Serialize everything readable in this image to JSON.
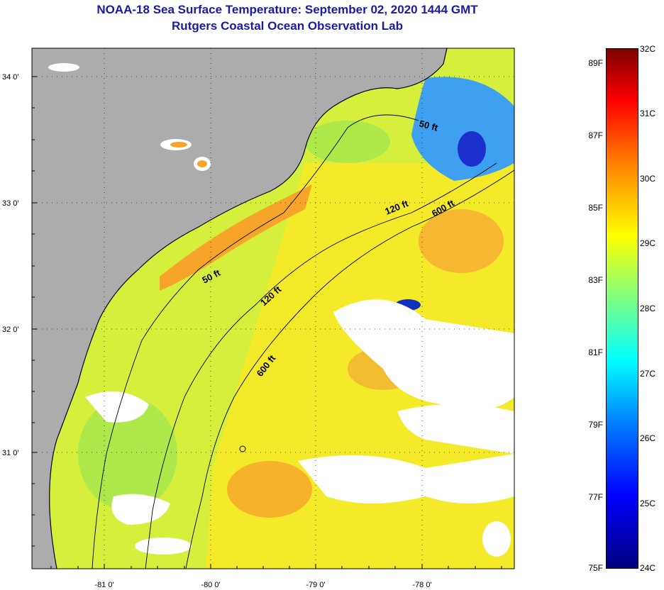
{
  "title": {
    "line1": "NOAA-18 Sea Surface Temperature:  September 02, 2020 1444 GMT",
    "line2": "Rutgers Coastal Ocean Observation Lab"
  },
  "map": {
    "lat_labels": [
      "34 0'",
      "33 0'",
      "32 0'",
      "31 0'"
    ],
    "lon_labels": [
      "-81 0'",
      "-80 0'",
      "-79 0'",
      "-78 0'"
    ],
    "contours": [
      {
        "label": "50 ft"
      },
      {
        "label": "50 ft"
      },
      {
        "label": "120 ft"
      },
      {
        "label": "120 ft"
      },
      {
        "label": "600 ft"
      },
      {
        "label": "600 ft"
      }
    ],
    "colors": {
      "land": "#acacac",
      "cloud": "#ffffff",
      "warm": "#ffaa22",
      "mid": "#ffee33",
      "cool": "#aaee44",
      "cold": "#1133cc"
    }
  },
  "colorbar": {
    "fahrenheit": [
      "89F",
      "87F",
      "85F",
      "83F",
      "81F",
      "79F",
      "77F",
      "75F"
    ],
    "celsius": [
      "32C",
      "31C",
      "30C",
      "29C",
      "28C",
      "27C",
      "26C",
      "25C",
      "24C"
    ]
  }
}
